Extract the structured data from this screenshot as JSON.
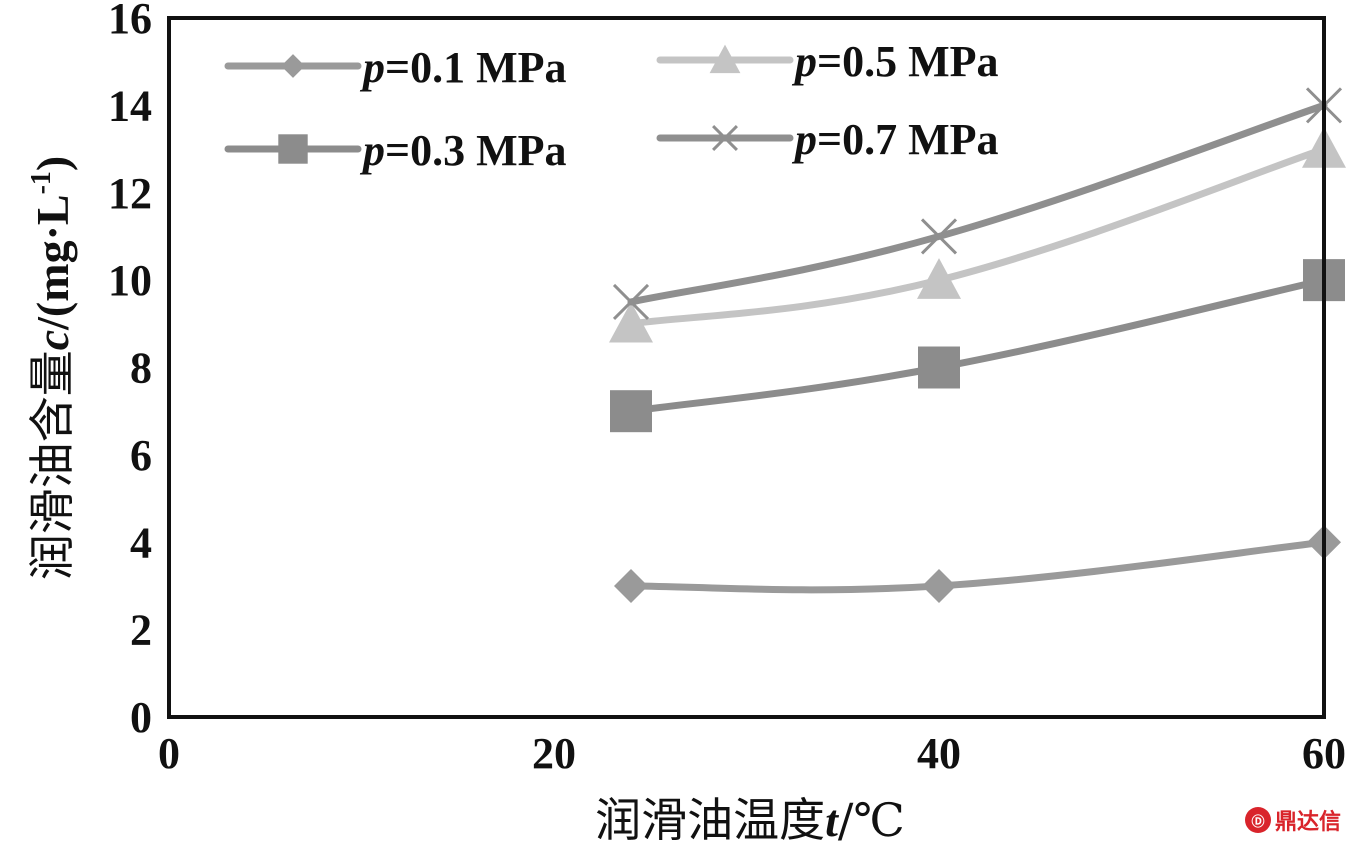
{
  "chart_data": {
    "type": "line",
    "x": [
      24,
      40,
      60
    ],
    "series": [
      {
        "name_prefix": "p",
        "name_rest": "=0.1 MPa",
        "values": [
          3,
          3,
          4
        ],
        "marker": "diamond",
        "color": "#9a9a9a"
      },
      {
        "name_prefix": "p",
        "name_rest": "=0.3 MPa",
        "values": [
          7,
          8,
          10
        ],
        "marker": "square",
        "color": "#8c8c8c"
      },
      {
        "name_prefix": "p",
        "name_rest": "=0.5 MPa",
        "values": [
          9,
          10,
          13
        ],
        "marker": "triangle",
        "color": "#c4c4c4"
      },
      {
        "name_prefix": "p",
        "name_rest": "=0.7 MPa",
        "values": [
          9.5,
          11,
          14
        ],
        "marker": "x",
        "color": "#8f8f8f"
      }
    ],
    "xlim": [
      0,
      60
    ],
    "ylim": [
      0,
      16
    ],
    "x_ticks": [
      "0",
      "20",
      "40",
      "60"
    ],
    "y_ticks": [
      "0",
      "2",
      "4",
      "6",
      "8",
      "10",
      "12",
      "14",
      "16"
    ],
    "xlabel_text": "润滑油温度",
    "xlabel_var": "t",
    "xlabel_unit": "/℃",
    "ylabel_text": "润滑油含量",
    "ylabel_var": "c",
    "ylabel_unit": "/(mg·L",
    "ylabel_exp": "-1",
    "ylabel_close": ")",
    "grid": false,
    "legend_position": "top-left"
  },
  "watermark": {
    "logo": "Ⓓ",
    "text": "鼎达信"
  }
}
